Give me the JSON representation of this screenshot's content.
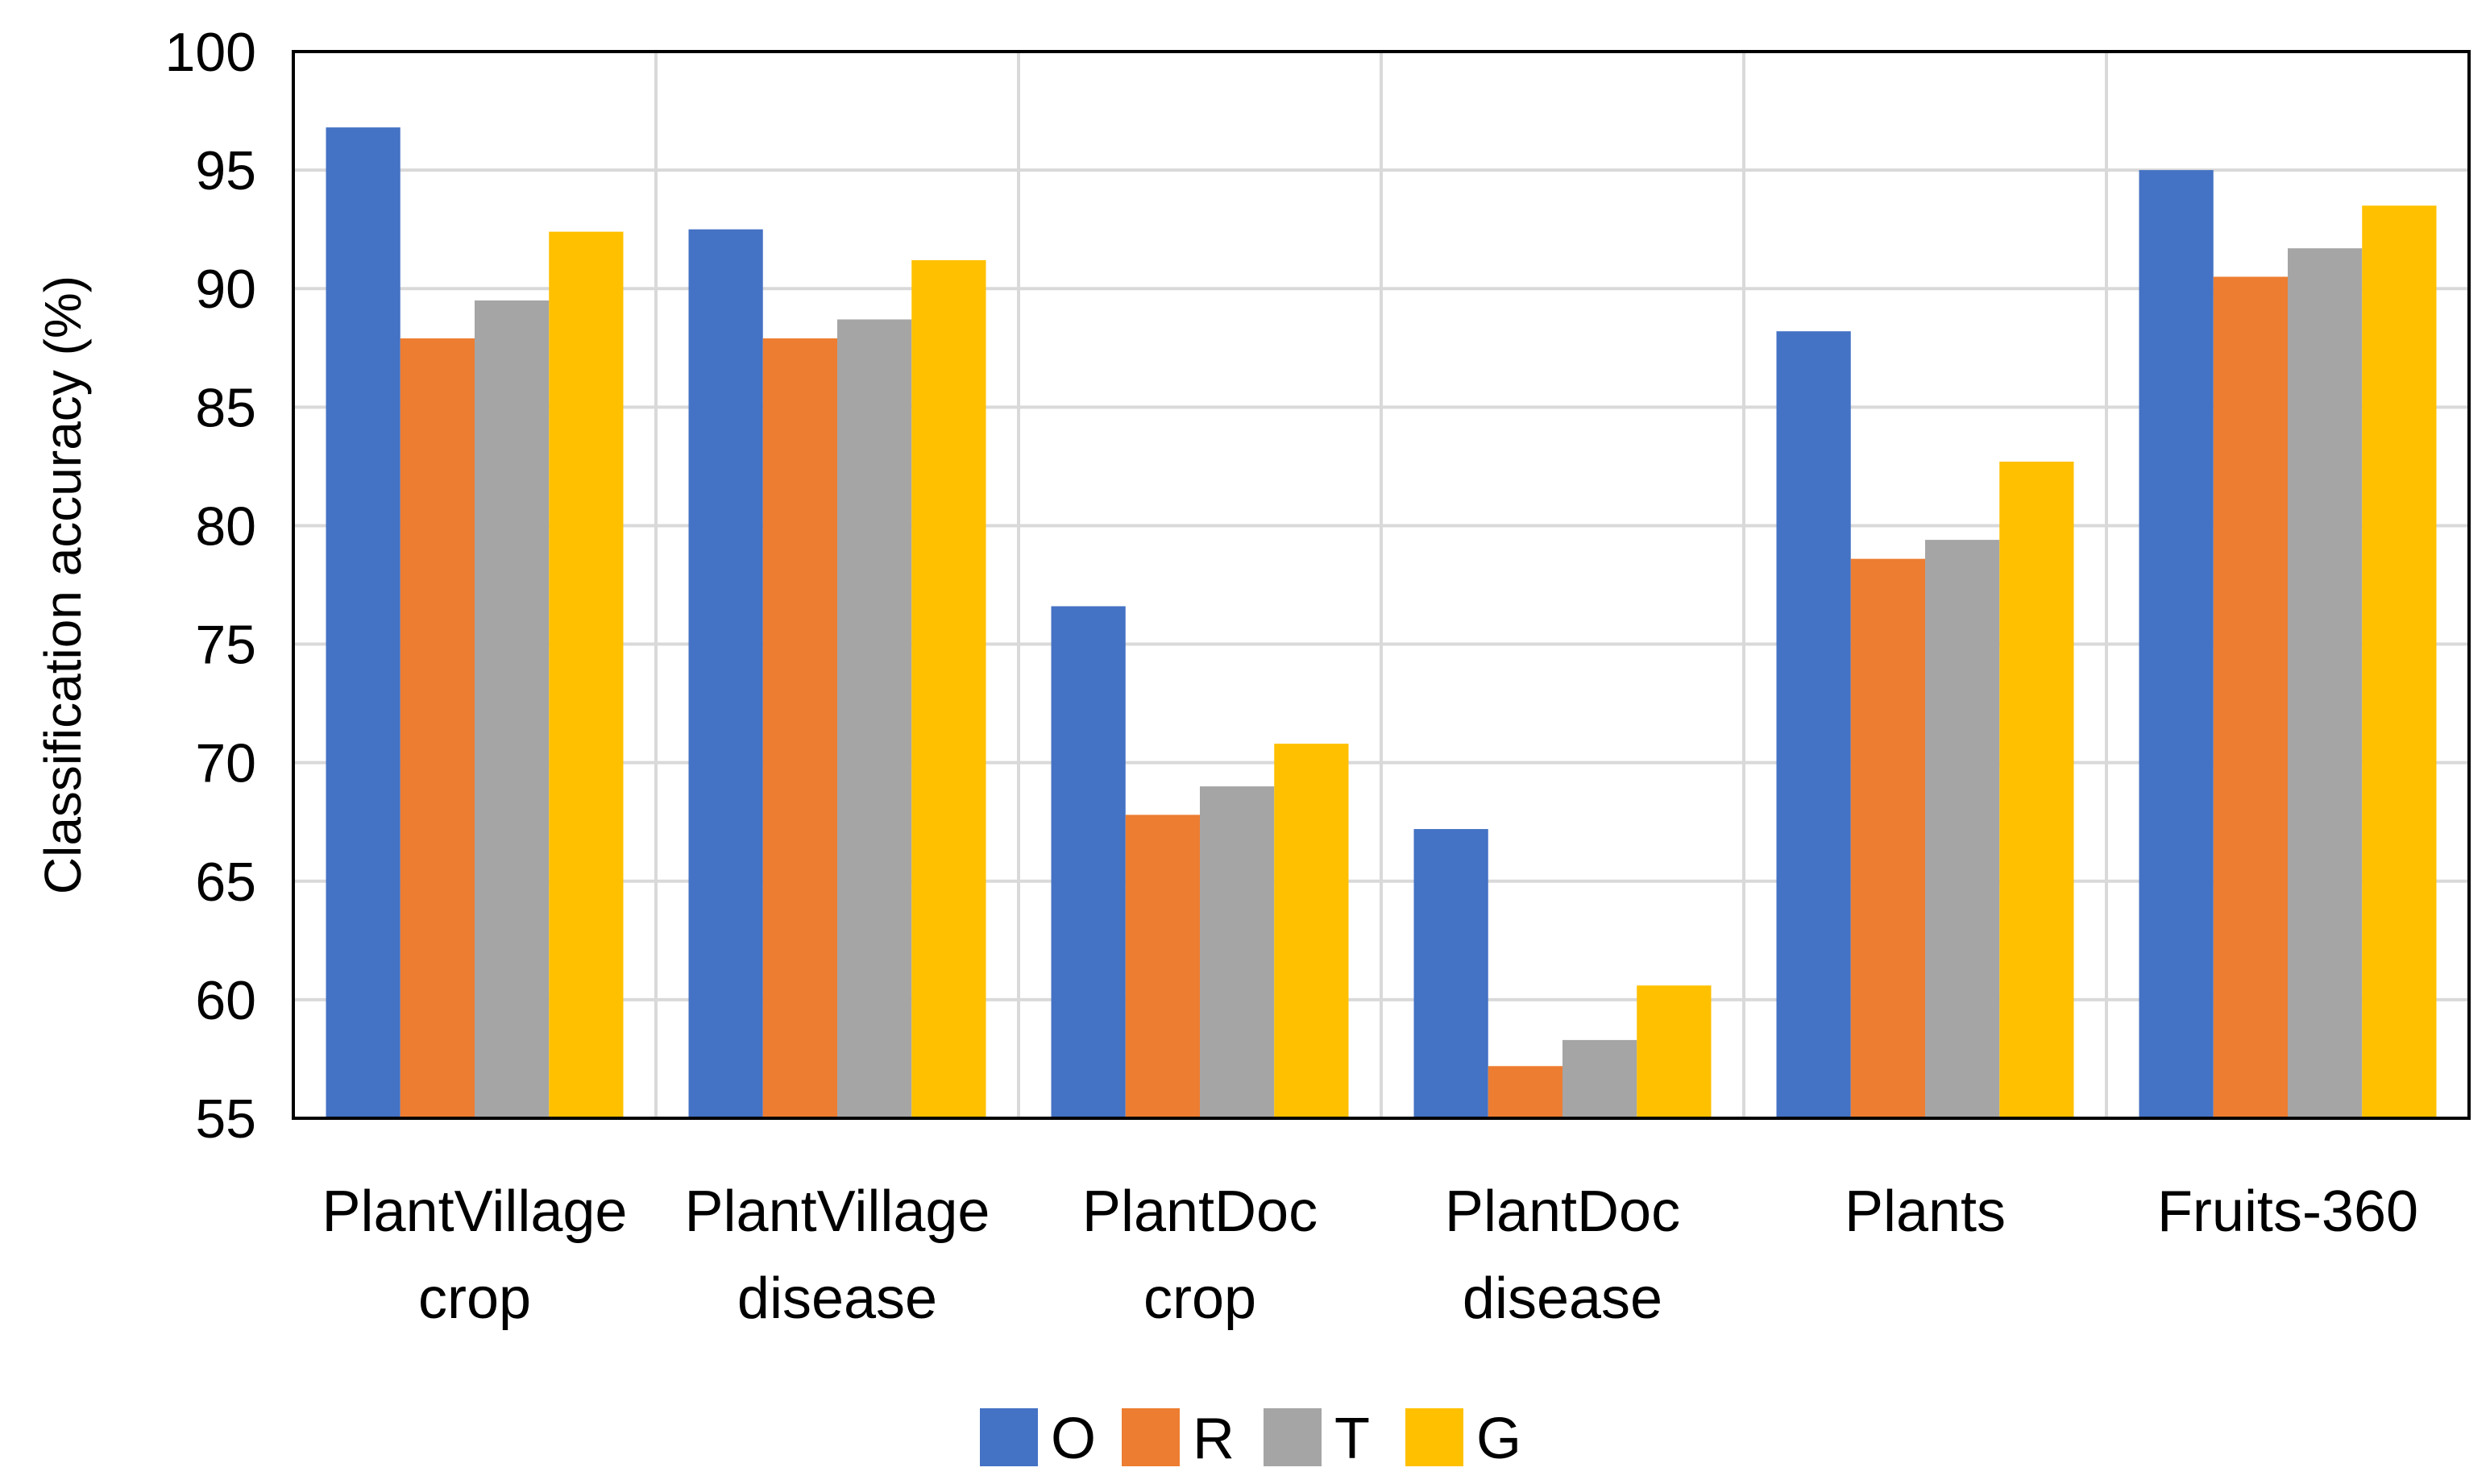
{
  "chart_data": {
    "type": "bar",
    "title": "",
    "xlabel": "",
    "ylabel": "Classification accuracy (%)",
    "ylim": [
      55,
      100
    ],
    "yticks": [
      55,
      60,
      65,
      70,
      75,
      80,
      85,
      90,
      95,
      100
    ],
    "grid": true,
    "legend_position": "bottom-center",
    "categories": [
      [
        "PlantVillage",
        "crop"
      ],
      [
        "PlantVillage",
        "disease"
      ],
      [
        "PlantDoc",
        "crop"
      ],
      [
        "PlantDoc",
        "disease"
      ],
      [
        "Plants"
      ],
      [
        "Fruits-360"
      ]
    ],
    "series": [
      {
        "name": "O",
        "color": "#4472c4",
        "values": [
          96.8,
          92.5,
          76.6,
          67.2,
          88.2,
          95.0
        ]
      },
      {
        "name": "R",
        "color": "#ed7d31",
        "values": [
          87.9,
          87.9,
          67.8,
          57.2,
          78.6,
          90.5
        ]
      },
      {
        "name": "T",
        "color": "#a5a5a5",
        "values": [
          89.5,
          88.7,
          69.0,
          58.3,
          79.4,
          91.7
        ]
      },
      {
        "name": "G",
        "color": "#ffc000",
        "values": [
          92.4,
          91.2,
          70.8,
          60.6,
          82.7,
          93.5
        ]
      }
    ]
  }
}
